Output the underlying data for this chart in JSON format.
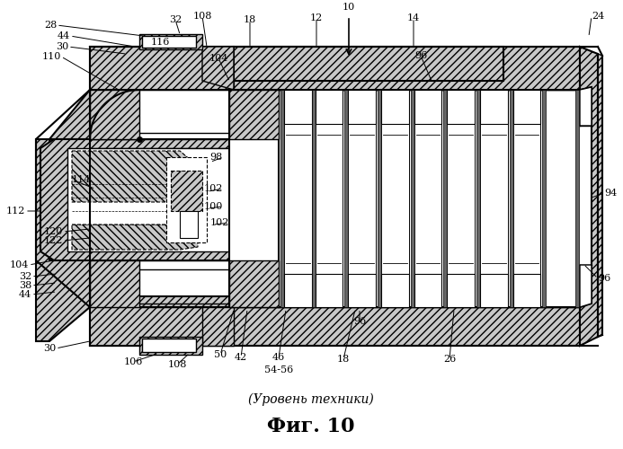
{
  "title_sub": "(Уровень техники)",
  "title_main": "Фиг. 10",
  "bg_color": "#ffffff",
  "fig_width": 6.93,
  "fig_height": 5.0,
  "dpi": 100
}
